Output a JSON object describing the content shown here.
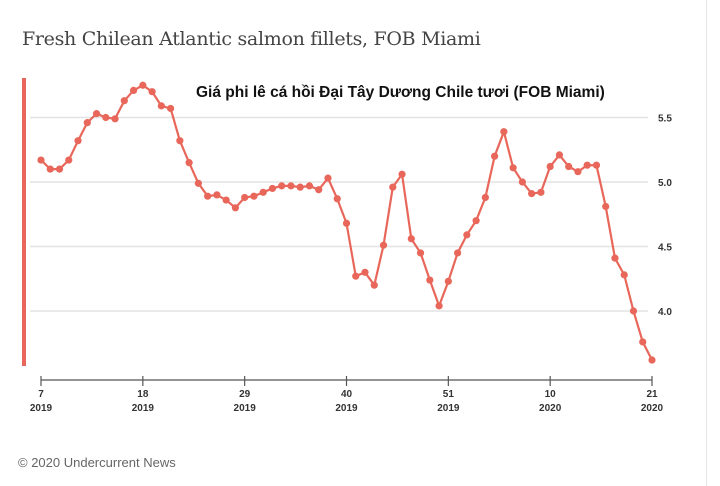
{
  "title": "Fresh Chilean Atlantic salmon fillets, FOB Miami",
  "subtitle": "Giá phi lê cá hồi Đại Tây Dương Chile tươi (FOB Miami)",
  "footer": "© 2020 Undercurrent News",
  "colors": {
    "line": "#e8675a",
    "grid": "#e3e3e3",
    "accent_bar": "#e8675a"
  },
  "chart_data": {
    "type": "line",
    "title": "Fresh Chilean Atlantic salmon fillets, FOB Miami",
    "xlabel": "",
    "ylabel": "",
    "ylim": [
      3.6,
      5.8
    ],
    "grid": true,
    "y_ticks": [
      "5.5",
      "5.0",
      "4.5",
      "4.0"
    ],
    "x_ticks": [
      {
        "index": 0,
        "week": "7",
        "year": "2019"
      },
      {
        "index": 11,
        "week": "18",
        "year": "2019"
      },
      {
        "index": 22,
        "week": "29",
        "year": "2019"
      },
      {
        "index": 33,
        "week": "40",
        "year": "2019"
      },
      {
        "index": 44,
        "week": "51",
        "year": "2019"
      },
      {
        "index": 55,
        "week": "10",
        "year": "2020"
      },
      {
        "index": 66,
        "week": "21",
        "year": "2020"
      }
    ],
    "x": [
      "2019-W7",
      "2019-W8",
      "2019-W9",
      "2019-W10",
      "2019-W11",
      "2019-W12",
      "2019-W13",
      "2019-W14",
      "2019-W15",
      "2019-W16",
      "2019-W17",
      "2019-W18",
      "2019-W19",
      "2019-W20",
      "2019-W21",
      "2019-W22",
      "2019-W23",
      "2019-W24",
      "2019-W25",
      "2019-W26",
      "2019-W27",
      "2019-W28",
      "2019-W29",
      "2019-W30",
      "2019-W31",
      "2019-W32",
      "2019-W33",
      "2019-W34",
      "2019-W35",
      "2019-W36",
      "2019-W37",
      "2019-W38",
      "2019-W39",
      "2019-W40",
      "2019-W41",
      "2019-W42",
      "2019-W43",
      "2019-W44",
      "2019-W45",
      "2019-W46",
      "2019-W47",
      "2019-W48",
      "2019-W49",
      "2019-W50",
      "2019-W51",
      "2019-W52",
      "2020-W1",
      "2020-W2",
      "2020-W3",
      "2020-W4",
      "2020-W5",
      "2020-W6",
      "2020-W7",
      "2020-W8",
      "2020-W9",
      "2020-W10",
      "2020-W11",
      "2020-W12",
      "2020-W13",
      "2020-W14",
      "2020-W15",
      "2020-W16",
      "2020-W17",
      "2020-W18",
      "2020-W19",
      "2020-W20",
      "2020-W21"
    ],
    "series": [
      {
        "name": "Fresh Chilean Atlantic salmon fillets, FOB Miami",
        "values": [
          5.17,
          5.1,
          5.1,
          5.17,
          5.32,
          5.46,
          5.53,
          5.5,
          5.49,
          5.63,
          5.71,
          5.75,
          5.7,
          5.59,
          5.57,
          5.32,
          5.15,
          4.99,
          4.89,
          4.9,
          4.86,
          4.8,
          4.88,
          4.89,
          4.92,
          4.95,
          4.97,
          4.97,
          4.96,
          4.97,
          4.94,
          5.03,
          4.87,
          4.68,
          4.27,
          4.3,
          4.2,
          4.51,
          4.96,
          5.06,
          4.56,
          4.45,
          4.24,
          4.04,
          4.23,
          4.45,
          4.59,
          4.7,
          4.88,
          5.2,
          5.39,
          5.11,
          5.0,
          4.91,
          4.92,
          5.12,
          5.21,
          5.12,
          5.08,
          5.13,
          5.13,
          4.81,
          4.41,
          4.28,
          4.0,
          3.76,
          3.62
        ]
      }
    ]
  }
}
